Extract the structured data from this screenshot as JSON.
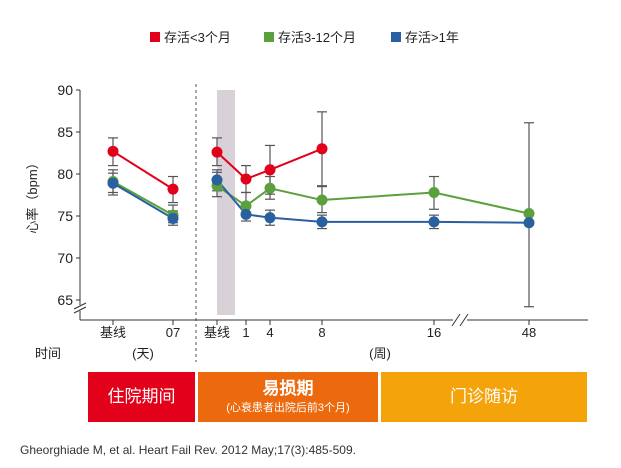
{
  "chart_data": {
    "type": "line",
    "ylabel": "心率（bpm）",
    "ylim": [
      65,
      90
    ],
    "yticks": [
      65,
      70,
      75,
      80,
      85,
      90
    ],
    "legend": [
      {
        "name": "存活<3个月",
        "color": "#e2001a"
      },
      {
        "name": "存活3-12个月",
        "color": "#5aa03c"
      },
      {
        "name": "存活>1年",
        "color": "#2a5fa0"
      }
    ],
    "time_label": "时间",
    "unit_days": "(天)",
    "unit_weeks": "(周)",
    "panels": [
      {
        "name": "hospital",
        "ticks": [
          {
            "key": "baseline",
            "label": "基线"
          },
          {
            "key": "d07",
            "label": "07"
          }
        ],
        "series": [
          {
            "name": "存活<3个月",
            "points": [
              {
                "x": "baseline",
                "y": 82.7,
                "lo": 81.0,
                "hi": 84.3
              },
              {
                "x": "d07",
                "y": 78.2,
                "lo": 76.6,
                "hi": 79.7
              }
            ]
          },
          {
            "name": "存活3-12个月",
            "points": [
              {
                "x": "baseline",
                "y": 79.1,
                "lo": 77.5,
                "hi": 80.5
              },
              {
                "x": "d07",
                "y": 75.1,
                "lo": 74.2,
                "hi": 76.3
              }
            ]
          },
          {
            "name": "存活>1年",
            "points": [
              {
                "x": "baseline",
                "y": 78.9,
                "lo": 77.8,
                "hi": 80.1
              },
              {
                "x": "d07",
                "y": 74.7,
                "lo": 73.9,
                "hi": 75.6
              }
            ]
          }
        ]
      },
      {
        "name": "follow-up",
        "ticks": [
          {
            "key": "baseline",
            "label": "基线"
          },
          {
            "key": "w1",
            "label": "1"
          },
          {
            "key": "w4",
            "label": "4"
          },
          {
            "key": "w8",
            "label": "8"
          },
          {
            "key": "w16",
            "label": "16"
          },
          {
            "key": "w48",
            "label": "48"
          }
        ],
        "series": [
          {
            "name": "存活<3个月",
            "points": [
              {
                "x": "baseline",
                "y": 82.6,
                "lo": 81.0,
                "hi": 84.3
              },
              {
                "x": "w1",
                "y": 79.4,
                "lo": 77.8,
                "hi": 81.0
              },
              {
                "x": "w4",
                "y": 80.5,
                "lo": 77.6,
                "hi": 83.4
              },
              {
                "x": "w8",
                "y": 83.0,
                "lo": 78.6,
                "hi": 87.4
              }
            ]
          },
          {
            "name": "存活3-12个月",
            "points": [
              {
                "x": "baseline",
                "y": 78.6,
                "lo": 77.3,
                "hi": 80.2
              },
              {
                "x": "w1",
                "y": 76.2,
                "lo": 75.0,
                "hi": 77.8
              },
              {
                "x": "w4",
                "y": 78.3,
                "lo": 77.0,
                "hi": 79.7
              },
              {
                "x": "w8",
                "y": 76.9,
                "lo": 75.4,
                "hi": 78.5
              },
              {
                "x": "w16",
                "y": 77.8,
                "lo": 75.8,
                "hi": 79.7
              },
              {
                "x": "w48",
                "y": 75.3
              }
            ]
          },
          {
            "name": "存活>1年",
            "points": [
              {
                "x": "baseline",
                "y": 79.3,
                "lo": 78.0,
                "hi": 80.5
              },
              {
                "x": "w1",
                "y": 75.2,
                "lo": 74.4,
                "hi": 76.0
              },
              {
                "x": "w4",
                "y": 74.8,
                "lo": 73.9,
                "hi": 75.7
              },
              {
                "x": "w8",
                "y": 74.3,
                "lo": 73.5,
                "hi": 75.1
              },
              {
                "x": "w16",
                "y": 74.3,
                "lo": 73.5,
                "hi": 75.1
              },
              {
                "x": "w48",
                "y": 74.2,
                "lo": 64.2,
                "hi": 86.1
              }
            ]
          }
        ]
      }
    ]
  },
  "phases": {
    "hospital": {
      "title": "住院期间"
    },
    "vulnerable": {
      "title": "易损期",
      "subtitle": "(心衰患者出院后前3个月)"
    },
    "follow_up": {
      "title": "门诊随访"
    }
  },
  "citation": "Gheorghiade M, et al. Heart Fail Rev. 2012 May;17(3):485-509.",
  "colors": {
    "red": "#e2001a",
    "green": "#5aa03c",
    "blue": "#2a5fa0",
    "shade": "#d8d2d8"
  }
}
